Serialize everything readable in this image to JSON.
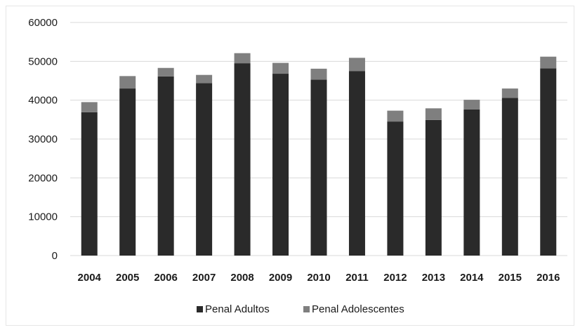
{
  "chart_data": {
    "type": "bar",
    "stacked": true,
    "categories": [
      "2004",
      "2005",
      "2006",
      "2007",
      "2008",
      "2009",
      "2010",
      "2011",
      "2012",
      "2013",
      "2014",
      "2015",
      "2016"
    ],
    "series": [
      {
        "name": "Penal Adultos",
        "color": "#2a2a2a",
        "values": [
          36900,
          43000,
          46100,
          44400,
          49500,
          46800,
          45300,
          47500,
          34500,
          34900,
          37600,
          40600,
          48200
        ]
      },
      {
        "name": "Penal Adolescentes",
        "color": "#7f7f7f",
        "values": [
          2600,
          3200,
          2200,
          2100,
          2600,
          2800,
          2800,
          3400,
          2800,
          3000,
          2500,
          2400,
          3000
        ]
      }
    ],
    "y_ticks": [
      "0",
      "10000",
      "20000",
      "30000",
      "40000",
      "50000",
      "60000"
    ],
    "ylim": [
      0,
      60000
    ],
    "grid": true,
    "legend_position": "bottom"
  }
}
